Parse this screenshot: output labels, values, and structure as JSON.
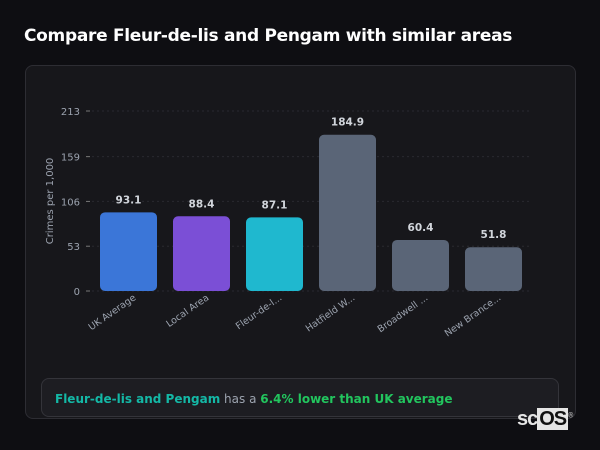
{
  "title": "Compare Fleur-de-lis and Pengam with similar areas",
  "chart_data": {
    "type": "bar",
    "ylabel": "Crimes per 1,000",
    "ylim": [
      0,
      213
    ],
    "yticks": [
      0,
      53,
      106,
      159,
      213
    ],
    "grid": true,
    "categories": [
      "UK Average",
      "Local Area",
      "Fleur-de-l...",
      "Hatfield W...",
      "Broadwell ...",
      "New Brance..."
    ],
    "values": [
      93.1,
      88.4,
      87.1,
      184.9,
      60.4,
      51.8
    ],
    "colors": [
      "#3b76d8",
      "#7b4fd6",
      "#1fb8cf",
      "#5a6577",
      "#5a6577",
      "#5a6577"
    ]
  },
  "summary": {
    "area": "Fleur-de-lis and Pengam",
    "middle": " has a ",
    "result": "6.4% lower than UK average"
  },
  "logo": {
    "text1": "sc",
    "text2": "OS",
    "mark": "®"
  }
}
